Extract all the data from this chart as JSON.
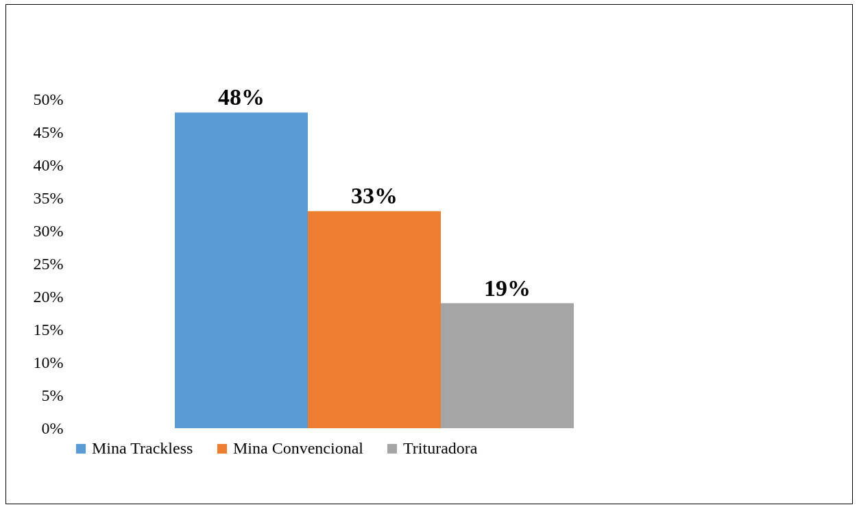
{
  "chart_data": {
    "type": "bar",
    "categories": [
      null
    ],
    "series": [
      {
        "name": "Mina Trackless",
        "color": "#5b9bd5",
        "values": [
          48
        ],
        "value_labels": [
          "48%"
        ]
      },
      {
        "name": "Mina Convencional",
        "color": "#ed7d31",
        "values": [
          33
        ],
        "value_labels": [
          "33%"
        ]
      },
      {
        "name": "Trituradora",
        "color": "#a5a5a5",
        "values": [
          19
        ],
        "value_labels": [
          "19%"
        ]
      }
    ],
    "ylim": [
      0,
      50
    ],
    "yticks": [
      {
        "value": 0,
        "label": "0%"
      },
      {
        "value": 5,
        "label": "5%"
      },
      {
        "value": 10,
        "label": "10%"
      },
      {
        "value": 15,
        "label": "15%"
      },
      {
        "value": 20,
        "label": "20%"
      },
      {
        "value": 25,
        "label": "25%"
      },
      {
        "value": 30,
        "label": "30%"
      },
      {
        "value": 35,
        "label": "35%"
      },
      {
        "value": 40,
        "label": "40%"
      },
      {
        "value": 45,
        "label": "45%"
      },
      {
        "value": 50,
        "label": "50%"
      }
    ],
    "grid": false,
    "legend": "bottom"
  }
}
